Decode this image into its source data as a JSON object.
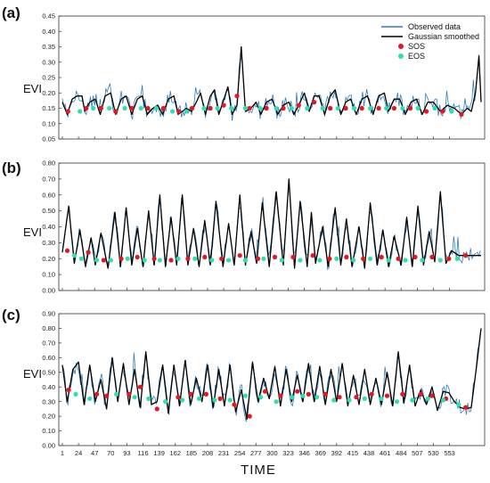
{
  "chart_data": [
    {
      "type": "line",
      "panel": "(a)",
      "ylabel": "EVI",
      "ylim": [
        0.05,
        0.45
      ],
      "yticks": [
        "0.05",
        "0.10",
        "0.15",
        "0.20",
        "0.25",
        "0.30",
        "0.35",
        "0.40",
        "0.45"
      ],
      "yticks_values": [
        0.05,
        0.1,
        0.15,
        0.2,
        0.25,
        0.3,
        0.35,
        0.4,
        0.45
      ],
      "xlim": [
        1,
        598
      ],
      "legend": {
        "placement": "top-right",
        "entries": [
          {
            "label": "Observed data",
            "color": "#2e7fbf"
          },
          {
            "label": "Gaussian smoothed",
            "color": "#000000"
          },
          {
            "label": "SOS",
            "color": "#e8141e"
          },
          {
            "label": "EOS",
            "color": "#2ee0b0"
          }
        ]
      },
      "series": [
        {
          "name": "Gaussian smoothed",
          "x": [
            1,
            8,
            15,
            22,
            29,
            33,
            40,
            48,
            55,
            62,
            70,
            77,
            85,
            92,
            100,
            108,
            115,
            122,
            130,
            137,
            144,
            152,
            160,
            166,
            172,
            178,
            185,
            192,
            198,
            205,
            212,
            218,
            224,
            230,
            237,
            243,
            250,
            256,
            262,
            270,
            277,
            284,
            292,
            300,
            308,
            316,
            324,
            331,
            338,
            346,
            353,
            360,
            367,
            375,
            383,
            390,
            398,
            405,
            412,
            420,
            428,
            436,
            444,
            452,
            460,
            466,
            474,
            482,
            490,
            498,
            506,
            514,
            522,
            530,
            540,
            550,
            560,
            570,
            578,
            584,
            590,
            595,
            598
          ],
          "y": [
            0.17,
            0.13,
            0.18,
            0.19,
            0.19,
            0.14,
            0.17,
            0.18,
            0.13,
            0.19,
            0.2,
            0.13,
            0.18,
            0.19,
            0.13,
            0.18,
            0.19,
            0.13,
            0.15,
            0.16,
            0.13,
            0.18,
            0.19,
            0.13,
            0.14,
            0.15,
            0.14,
            0.17,
            0.2,
            0.13,
            0.19,
            0.21,
            0.13,
            0.17,
            0.22,
            0.13,
            0.16,
            0.35,
            0.14,
            0.15,
            0.17,
            0.13,
            0.17,
            0.18,
            0.13,
            0.16,
            0.17,
            0.13,
            0.16,
            0.2,
            0.14,
            0.19,
            0.19,
            0.13,
            0.19,
            0.21,
            0.13,
            0.17,
            0.18,
            0.13,
            0.18,
            0.19,
            0.13,
            0.19,
            0.2,
            0.14,
            0.18,
            0.18,
            0.13,
            0.17,
            0.18,
            0.13,
            0.17,
            0.17,
            0.14,
            0.16,
            0.15,
            0.13,
            0.15,
            0.14,
            0.2,
            0.32,
            0.17
          ]
        },
        {
          "name": "SOS",
          "x": [
            9,
            35,
            56,
            77,
            100,
            123,
            145,
            167,
            186,
            212,
            231,
            250,
            268,
            292,
            316,
            338,
            360,
            383,
            405,
            428,
            452,
            474,
            497,
            520,
            543,
            570
          ],
          "y": [
            0.14,
            0.15,
            0.15,
            0.14,
            0.15,
            0.15,
            0.15,
            0.14,
            0.15,
            0.15,
            0.16,
            0.19,
            0.15,
            0.15,
            0.15,
            0.16,
            0.17,
            0.15,
            0.15,
            0.15,
            0.15,
            0.15,
            0.15,
            0.14,
            0.14,
            0.13
          ]
        },
        {
          "name": "EOS",
          "x": [
            26,
            45,
            68,
            90,
            113,
            135,
            158,
            178,
            203,
            222,
            242,
            262,
            283,
            306,
            328,
            350,
            372,
            394,
            417,
            440,
            463,
            486,
            508,
            532,
            556
          ],
          "y": [
            0.14,
            0.15,
            0.15,
            0.15,
            0.15,
            0.15,
            0.14,
            0.14,
            0.15,
            0.15,
            0.15,
            0.15,
            0.15,
            0.15,
            0.15,
            0.15,
            0.15,
            0.15,
            0.15,
            0.15,
            0.15,
            0.15,
            0.15,
            0.15,
            0.14
          ]
        }
      ]
    },
    {
      "type": "line",
      "panel": "(b)",
      "ylabel": "EVI",
      "ylim": [
        0.0,
        0.8
      ],
      "yticks": [
        "0.00",
        "0.10",
        "0.20",
        "0.30",
        "0.40",
        "0.50",
        "0.60",
        "0.70",
        "0.80"
      ],
      "yticks_values": [
        0.0,
        0.1,
        0.2,
        0.3,
        0.4,
        0.5,
        0.6,
        0.7,
        0.8
      ],
      "xlim": [
        1,
        598
      ],
      "series": [
        {
          "name": "Gaussian smoothed",
          "x": [
            1,
            10,
            18,
            26,
            34,
            42,
            48,
            56,
            66,
            76,
            84,
            92,
            100,
            108,
            116,
            124,
            132,
            140,
            148,
            156,
            164,
            172,
            180,
            188,
            196,
            204,
            212,
            220,
            230,
            238,
            246,
            254,
            262,
            270,
            278,
            286,
            296,
            306,
            316,
            324,
            332,
            340,
            350,
            356,
            362,
            372,
            380,
            390,
            398,
            406,
            414,
            424,
            432,
            440,
            450,
            458,
            466,
            474,
            484,
            492,
            500,
            508,
            516,
            524,
            532,
            540,
            548,
            556,
            566,
            574,
            582,
            590,
            598
          ],
          "y": [
            0.24,
            0.53,
            0.17,
            0.38,
            0.15,
            0.33,
            0.16,
            0.36,
            0.14,
            0.49,
            0.15,
            0.52,
            0.16,
            0.39,
            0.15,
            0.5,
            0.16,
            0.6,
            0.15,
            0.46,
            0.16,
            0.6,
            0.16,
            0.39,
            0.15,
            0.44,
            0.16,
            0.56,
            0.15,
            0.42,
            0.16,
            0.6,
            0.16,
            0.37,
            0.17,
            0.55,
            0.15,
            0.62,
            0.16,
            0.7,
            0.14,
            0.56,
            0.15,
            0.49,
            0.17,
            0.4,
            0.15,
            0.52,
            0.16,
            0.45,
            0.15,
            0.4,
            0.14,
            0.55,
            0.16,
            0.38,
            0.15,
            0.34,
            0.16,
            0.46,
            0.15,
            0.53,
            0.16,
            0.37,
            0.18,
            0.62,
            0.17,
            0.25,
            0.22,
            0.22,
            0.22,
            0.22,
            0.22
          ]
        },
        {
          "name": "SOS",
          "x": [
            8,
            38,
            60,
            85,
            108,
            132,
            156,
            180,
            204,
            228,
            254,
            280,
            304,
            330,
            358,
            382,
            406,
            430,
            456,
            480,
            504,
            528,
            552,
            576
          ],
          "y": [
            0.25,
            0.24,
            0.19,
            0.2,
            0.21,
            0.2,
            0.19,
            0.2,
            0.21,
            0.2,
            0.22,
            0.2,
            0.21,
            0.21,
            0.22,
            0.2,
            0.21,
            0.2,
            0.21,
            0.2,
            0.21,
            0.21,
            0.2,
            0.22
          ]
        },
        {
          "name": "EOS",
          "x": [
            18,
            28,
            50,
            70,
            94,
            118,
            140,
            166,
            190,
            214,
            238,
            262,
            288,
            314,
            340,
            368,
            392,
            416,
            440,
            466,
            490,
            514,
            540,
            564
          ],
          "y": [
            0.22,
            0.2,
            0.19,
            0.19,
            0.2,
            0.19,
            0.19,
            0.2,
            0.2,
            0.19,
            0.19,
            0.19,
            0.2,
            0.19,
            0.19,
            0.19,
            0.2,
            0.19,
            0.2,
            0.19,
            0.19,
            0.19,
            0.19,
            0.2
          ]
        }
      ]
    },
    {
      "type": "line",
      "panel": "(c)",
      "ylabel": "EVI",
      "ylim": [
        0.0,
        0.9
      ],
      "yticks": [
        "0.00",
        "0.10",
        "0.20",
        "0.30",
        "0.40",
        "0.50",
        "0.60",
        "0.70",
        "0.80",
        "0.90"
      ],
      "yticks_values": [
        0.0,
        0.1,
        0.2,
        0.3,
        0.4,
        0.5,
        0.6,
        0.7,
        0.8,
        0.9
      ],
      "xlim": [
        1,
        598
      ],
      "xlabel": "TIME",
      "xticks": [
        "1",
        "24",
        "47",
        "70",
        "93",
        "116",
        "139",
        "162",
        "185",
        "208",
        "231",
        "254",
        "277",
        "300",
        "323",
        "346",
        "369",
        "392",
        "415",
        "438",
        "461",
        "484",
        "507",
        "530",
        "553"
      ],
      "xticks_values": [
        1,
        24,
        47,
        70,
        93,
        116,
        139,
        162,
        185,
        208,
        231,
        254,
        277,
        300,
        323,
        346,
        369,
        392,
        415,
        438,
        461,
        484,
        507,
        530,
        553
      ],
      "series": [
        {
          "name": "Gaussian smoothed",
          "x": [
            1,
            8,
            16,
            24,
            32,
            40,
            48,
            56,
            64,
            72,
            80,
            88,
            96,
            104,
            112,
            120,
            128,
            136,
            144,
            152,
            160,
            168,
            176,
            184,
            192,
            200,
            208,
            216,
            224,
            232,
            240,
            248,
            256,
            264,
            272,
            280,
            288,
            296,
            304,
            312,
            320,
            328,
            336,
            344,
            352,
            360,
            368,
            376,
            384,
            392,
            400,
            408,
            416,
            424,
            432,
            440,
            448,
            456,
            464,
            472,
            480,
            488,
            496,
            504,
            512,
            520,
            528,
            536,
            544,
            552,
            560,
            568,
            576,
            584,
            592,
            598
          ],
          "y": [
            0.55,
            0.3,
            0.52,
            0.57,
            0.28,
            0.55,
            0.3,
            0.45,
            0.25,
            0.6,
            0.3,
            0.56,
            0.28,
            0.52,
            0.26,
            0.64,
            0.28,
            0.3,
            0.55,
            0.22,
            0.55,
            0.27,
            0.58,
            0.28,
            0.46,
            0.3,
            0.55,
            0.26,
            0.52,
            0.27,
            0.55,
            0.23,
            0.38,
            0.18,
            0.57,
            0.3,
            0.46,
            0.32,
            0.54,
            0.27,
            0.52,
            0.3,
            0.48,
            0.3,
            0.56,
            0.3,
            0.54,
            0.28,
            0.52,
            0.3,
            0.56,
            0.27,
            0.48,
            0.28,
            0.52,
            0.28,
            0.46,
            0.28,
            0.5,
            0.27,
            0.64,
            0.29,
            0.55,
            0.27,
            0.38,
            0.28,
            0.4,
            0.24,
            0.37,
            0.36,
            0.3,
            0.26,
            0.25,
            0.26,
            0.56,
            0.8
          ]
        },
        {
          "name": "SOS",
          "x": [
            10,
            50,
            64,
            96,
            112,
            136,
            166,
            184,
            206,
            226,
            246,
            268,
            290,
            312,
            336,
            352,
            376,
            396,
            420,
            442,
            464,
            486,
            512,
            528,
            548,
            576
          ],
          "y": [
            0.38,
            0.35,
            0.34,
            0.35,
            0.4,
            0.25,
            0.33,
            0.35,
            0.35,
            0.32,
            0.28,
            0.2,
            0.37,
            0.34,
            0.37,
            0.35,
            0.35,
            0.33,
            0.33,
            0.35,
            0.34,
            0.35,
            0.35,
            0.34,
            0.32,
            0.26
          ]
        },
        {
          "name": "EOS",
          "x": [
            20,
            40,
            78,
            104,
            124,
            148,
            172,
            196,
            218,
            240,
            262,
            284,
            306,
            328,
            344,
            364,
            388,
            410,
            432,
            456,
            478,
            500,
            522,
            544,
            566
          ],
          "y": [
            0.35,
            0.32,
            0.35,
            0.33,
            0.32,
            0.3,
            0.31,
            0.32,
            0.31,
            0.31,
            0.34,
            0.33,
            0.3,
            0.33,
            0.34,
            0.33,
            0.31,
            0.31,
            0.32,
            0.32,
            0.3,
            0.31,
            0.32,
            0.31,
            0.28
          ]
        }
      ]
    }
  ],
  "colors": {
    "observed": "#2e7fbf",
    "smoothed": "#000000",
    "sos": "#e8141e",
    "eos": "#2ee0b0",
    "axis": "#333333"
  }
}
